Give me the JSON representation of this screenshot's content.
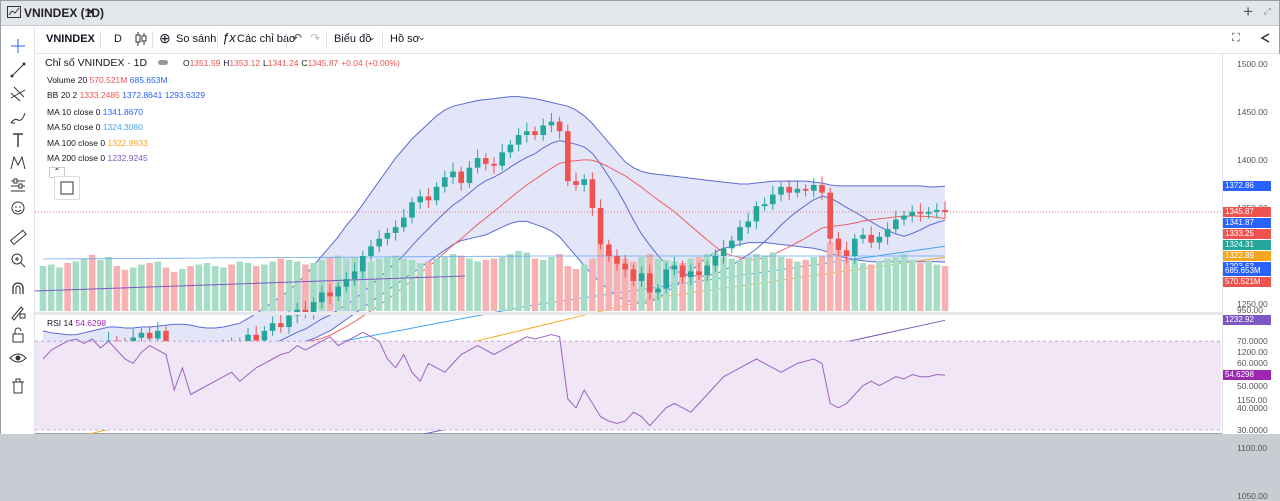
{
  "window": {
    "title": "VNINDEX (1D)",
    "close_glyph": "×",
    "plus_glyph": "+",
    "max_glyph": "⤢"
  },
  "toolbar": {
    "symbol": "VNINDEX",
    "interval": "D",
    "compare": "So sánh",
    "indicators": "Các chỉ báo",
    "chart_type": "Biểu đồ",
    "profile": "Hồ sơ"
  },
  "legend": {
    "main_title": "Chỉ số VNINDEX · 1D",
    "o_label": "O",
    "o": "1351.59",
    "h_label": "H",
    "h": "1353.12",
    "l_label": "L",
    "l": "1341.24",
    "c_label": "C",
    "c": "1345.87",
    "change": "+0.04 (+0.00%)",
    "volume_label": "Volume 20",
    "volume_v1": "570.521M",
    "volume_v2": "685.653M",
    "bb_label": "BB 20 2",
    "bb_v1": "1333.2485",
    "bb_v2": "1372.8641",
    "bb_v3": "1293.6329",
    "ma10_label": "MA 10 close 0",
    "ma10": "1341.8670",
    "ma50_label": "MA 50 close 0",
    "ma50": "1324.3080",
    "ma100_label": "MA 100 close 0",
    "ma100": "1322.8933",
    "ma200_label": "MA 200 close 0",
    "ma200": "1232.9245",
    "rsi_label": "RSI 14",
    "rsi": "54.6298"
  },
  "price_axis": [
    "1500.00",
    "1450.00",
    "1400.00",
    "1350.00",
    "1300.00",
    "1250.00",
    "1200.00",
    "1150.00",
    "1100.00",
    "1050.00",
    "950.00"
  ],
  "rsi_axis": [
    "80.0000",
    "70.0000",
    "60.0000",
    "50.0000",
    "40.0000",
    "30.0000"
  ],
  "badges": {
    "bb_upper": "1372.86",
    "last_price": "1345.87",
    "ma10": "1341.87",
    "bb_basis": "1333.25",
    "ma50": "1324.31",
    "ma100": "1322.89",
    "bb_lower": "1293.63",
    "ma200": "1232.92",
    "vol_ma": "685.653M",
    "vol": "570.521M",
    "rsi": "54.6298"
  },
  "colors": {
    "up": "#26a69a",
    "down": "#ef5350",
    "bb_fill": "#d9dcf5",
    "bb_line": "#5b6bd6",
    "ma10": "#5b6bd6",
    "ma50": "#42a5f5",
    "ma100": "#f5a623",
    "ma200": "#7e57c2",
    "rsi_line": "#9c62c4",
    "rsi_fill": "#f1e6f5"
  },
  "icons": [
    "crosshair-icon",
    "trendline-icon",
    "fib-icon",
    "brush-icon",
    "text-icon",
    "pattern-icon",
    "forecast-icon",
    "emoji-icon",
    "ruler-icon",
    "zoom-icon",
    "magnet-icon",
    "draw-lock-icon",
    "lock-icon",
    "eye-icon",
    "trash-icon"
  ],
  "chart_data": {
    "type": "candlestick",
    "candles_close": [
      1180,
      1188,
      1192,
      1186,
      1195,
      1200,
      1196,
      1205,
      1212,
      1208,
      1198,
      1215,
      1220,
      1214,
      1222,
      1190,
      1178,
      1185,
      1182,
      1190,
      1196,
      1202,
      1206,
      1200,
      1210,
      1218,
      1212,
      1222,
      1230,
      1226,
      1238,
      1244,
      1240,
      1252,
      1262,
      1258,
      1268,
      1276,
      1284,
      1300,
      1310,
      1318,
      1324,
      1330,
      1340,
      1356,
      1362,
      1358,
      1372,
      1382,
      1388,
      1376,
      1392,
      1402,
      1396,
      1394,
      1408,
      1416,
      1426,
      1430,
      1426,
      1436,
      1440,
      1430,
      1378,
      1374,
      1380,
      1350,
      1312,
      1300,
      1292,
      1286,
      1274,
      1282,
      1262,
      1266,
      1286,
      1290,
      1278,
      1284,
      1280,
      1290,
      1300,
      1308,
      1316,
      1330,
      1336,
      1352,
      1354,
      1364,
      1372,
      1366,
      1370,
      1368,
      1374,
      1366,
      1318,
      1306,
      1300,
      1318,
      1322,
      1314,
      1320,
      1328,
      1338,
      1342,
      1346,
      1344,
      1346,
      1348,
      1345.87
    ],
    "volume": [
      60,
      62,
      58,
      64,
      66,
      70,
      75,
      68,
      72,
      60,
      55,
      58,
      62,
      64,
      66,
      58,
      52,
      56,
      60,
      62,
      64,
      60,
      58,
      62,
      66,
      64,
      60,
      62,
      66,
      70,
      68,
      66,
      62,
      64,
      68,
      72,
      74,
      70,
      72,
      68,
      66,
      70,
      72,
      74,
      70,
      68,
      64,
      66,
      70,
      72,
      76,
      74,
      70,
      66,
      68,
      70,
      72,
      76,
      80,
      78,
      70,
      68,
      72,
      76,
      60,
      56,
      62,
      70,
      88,
      80,
      74,
      70,
      66,
      72,
      76,
      70,
      68,
      66,
      64,
      70,
      72,
      76,
      78,
      72,
      70,
      68,
      72,
      76,
      74,
      78,
      72,
      70,
      66,
      68,
      72,
      74,
      92,
      80,
      70,
      68,
      64,
      62,
      66,
      70,
      72,
      76,
      68,
      64,
      66,
      62,
      60
    ],
    "rsi": [
      62,
      66,
      68,
      70,
      71,
      69,
      71,
      67,
      70,
      66,
      62,
      60,
      65,
      68,
      66,
      64,
      48,
      58,
      46,
      48,
      50,
      52,
      54,
      56,
      52,
      55,
      58,
      60,
      62,
      64,
      65,
      68,
      66,
      68,
      70,
      72,
      68,
      70,
      72,
      74,
      72,
      70,
      62,
      58,
      64,
      56,
      52,
      60,
      58,
      56,
      60,
      64,
      66,
      68,
      66,
      64,
      66,
      68,
      70,
      72,
      71,
      72,
      73,
      72,
      44,
      40,
      48,
      42,
      36,
      34,
      33,
      34,
      38,
      36,
      32,
      36,
      40,
      42,
      40,
      38,
      42,
      46,
      50,
      54,
      56,
      58,
      60,
      62,
      60,
      58,
      56,
      58,
      60,
      61,
      62,
      60,
      42,
      40,
      42,
      46,
      50,
      52,
      50,
      52,
      54,
      53,
      55,
      54,
      54,
      55,
      54.63
    ],
    "bb_upper": [
      1222,
      1220,
      1219,
      1218,
      1218,
      1220,
      1222,
      1224,
      1226,
      1226,
      1225,
      1225,
      1226,
      1226,
      1227,
      1228,
      1229,
      1229,
      1228,
      1226,
      1225,
      1225,
      1226,
      1228,
      1230,
      1235,
      1240,
      1246,
      1252,
      1258,
      1264,
      1272,
      1280,
      1290,
      1300,
      1310,
      1320,
      1332,
      1342,
      1354,
      1366,
      1378,
      1390,
      1402,
      1412,
      1422,
      1430,
      1438,
      1446,
      1452,
      1456,
      1458,
      1460,
      1462,
      1463,
      1464,
      1465,
      1466,
      1466,
      1465,
      1464,
      1462,
      1460,
      1458,
      1456,
      1452,
      1446,
      1438,
      1428,
      1418,
      1408,
      1398,
      1392,
      1388,
      1386,
      1385,
      1384,
      1383,
      1382,
      1381,
      1380,
      1379,
      1378,
      1377,
      1376,
      1375,
      1375,
      1376,
      1377,
      1378,
      1378,
      1378,
      1378,
      1378,
      1377,
      1376,
      1374,
      1373,
      1373,
      1373,
      1373,
      1373,
      1373,
      1373,
      1373,
      1373,
      1373,
      1373,
      1372,
      1372,
      1372.86
    ],
    "bb_lower": [
      1152,
      1154,
      1156,
      1158,
      1160,
      1162,
      1165,
      1168,
      1170,
      1172,
      1172,
      1170,
      1168,
      1165,
      1162,
      1158,
      1156,
      1158,
      1162,
      1168,
      1174,
      1180,
      1186,
      1192,
      1198,
      1202,
      1205,
      1207,
      1208,
      1208,
      1208,
      1209,
      1211,
      1214,
      1218,
      1222,
      1228,
      1234,
      1240,
      1246,
      1252,
      1258,
      1264,
      1270,
      1276,
      1282,
      1288,
      1294,
      1300,
      1306,
      1312,
      1316,
      1318,
      1320,
      1322,
      1326,
      1330,
      1334,
      1336,
      1336,
      1333,
      1330,
      1326,
      1320,
      1310,
      1300,
      1290,
      1280,
      1272,
      1265,
      1258,
      1254,
      1252,
      1250,
      1252,
      1256,
      1262,
      1268,
      1276,
      1284,
      1292,
      1298,
      1304,
      1308,
      1310,
      1312,
      1314,
      1314,
      1314,
      1313,
      1312,
      1311,
      1310,
      1309,
      1308,
      1306,
      1303,
      1300,
      1298,
      1296,
      1295,
      1294,
      1294,
      1294,
      1294,
      1294,
      1294,
      1294,
      1294,
      1294,
      1293.63
    ]
  }
}
